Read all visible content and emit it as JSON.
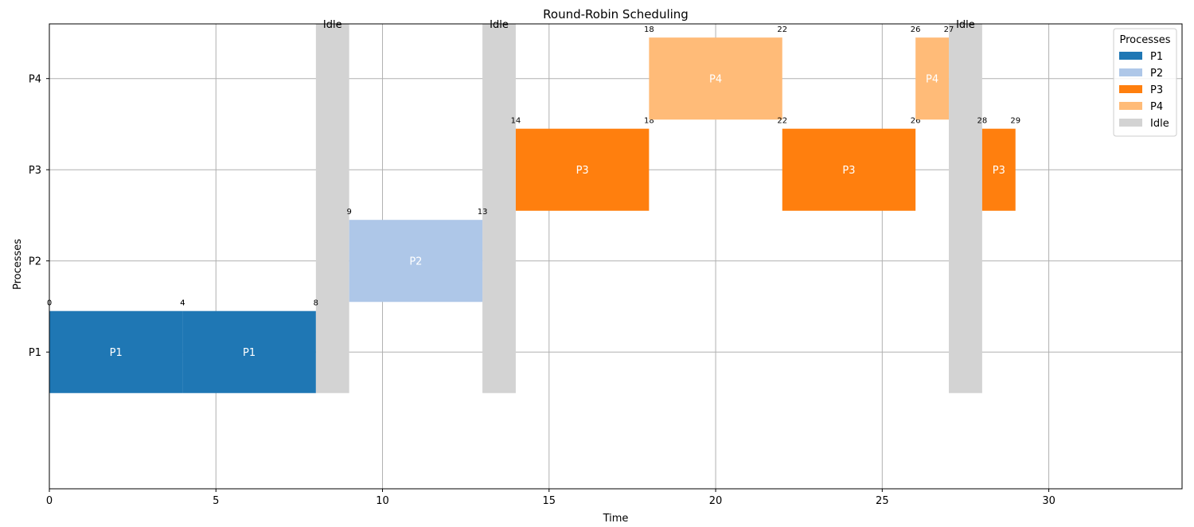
{
  "chart_data": {
    "type": "gantt",
    "title": "Round-Robin Scheduling",
    "xlabel": "Time",
    "ylabel": "Processes",
    "xlim": [
      0,
      34
    ],
    "x_ticks": [
      0,
      5,
      10,
      15,
      20,
      25,
      30
    ],
    "y_categories": [
      "P1",
      "P2",
      "P3",
      "P4"
    ],
    "grid": true,
    "legend": {
      "title": "Processes",
      "placement": "top-right",
      "entries": [
        {
          "name": "P1",
          "color": "#1f77b4"
        },
        {
          "name": "P2",
          "color": "#aec7e8"
        },
        {
          "name": "P3",
          "color": "#ff7f0e"
        },
        {
          "name": "P4",
          "color": "#ffbb78"
        },
        {
          "name": "Idle",
          "color": "#d3d3d3"
        }
      ]
    },
    "segments": [
      {
        "process": "P1",
        "row": 0,
        "start": 0,
        "end": 4,
        "label": "P1",
        "start_label": "0",
        "end_label": "4"
      },
      {
        "process": "P1",
        "row": 0,
        "start": 4,
        "end": 8,
        "label": "P1",
        "start_label": "4",
        "end_label": "8"
      },
      {
        "process": "P2",
        "row": 1,
        "start": 9,
        "end": 13,
        "label": "P2",
        "start_label": "9",
        "end_label": "13"
      },
      {
        "process": "P3",
        "row": 2,
        "start": 14,
        "end": 18,
        "label": "P3",
        "start_label": "14",
        "end_label": "18"
      },
      {
        "process": "P4",
        "row": 3,
        "start": 18,
        "end": 22,
        "label": "P4",
        "start_label": "18",
        "end_label": "22"
      },
      {
        "process": "P3",
        "row": 2,
        "start": 22,
        "end": 26,
        "label": "P3",
        "start_label": "22",
        "end_label": "26"
      },
      {
        "process": "P4",
        "row": 3,
        "start": 26,
        "end": 27,
        "label": "P4",
        "start_label": "26",
        "end_label": "27"
      },
      {
        "process": "P3",
        "row": 2,
        "start": 28,
        "end": 29,
        "label": "P3",
        "start_label": "28",
        "end_label": "29"
      }
    ],
    "idle": [
      {
        "start": 8,
        "end": 9,
        "label": "Idle"
      },
      {
        "start": 13,
        "end": 14,
        "label": "Idle"
      },
      {
        "start": 27,
        "end": 28,
        "label": "Idle"
      }
    ]
  }
}
